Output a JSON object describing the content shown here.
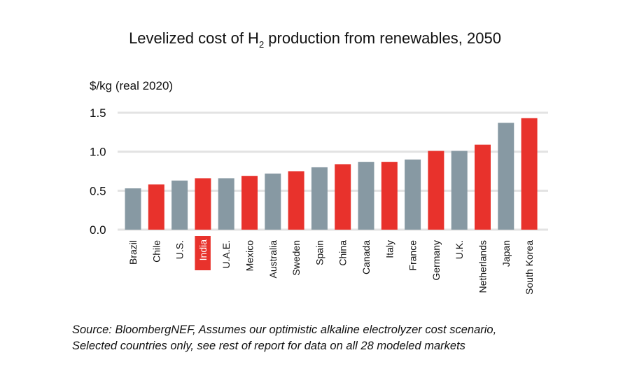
{
  "chart_data": {
    "type": "bar",
    "title_parts": {
      "before": "Levelized cost of H",
      "subscript": "2",
      "after": " production from renewables, 2050"
    },
    "title": "Levelized cost of H2 production from renewables, 2050",
    "ylabel": "$/kg (real 2020)",
    "xlabel": "",
    "ylim": [
      0,
      1.5
    ],
    "yticks": [
      0.0,
      0.5,
      1.0,
      1.5
    ],
    "ytick_labels": [
      "0.0",
      "0.5",
      "1.0",
      "1.5"
    ],
    "grid": true,
    "categories": [
      "Brazil",
      "Chile",
      "U.S.",
      "India",
      "U.A.E.",
      "Mexico",
      "Australia",
      "Sweden",
      "Spain",
      "China",
      "Canada",
      "Italy",
      "France",
      "Germany",
      "U.K.",
      "Netherlands",
      "Japan",
      "South Korea"
    ],
    "values": [
      0.53,
      0.58,
      0.63,
      0.66,
      0.66,
      0.69,
      0.72,
      0.75,
      0.8,
      0.84,
      0.87,
      0.87,
      0.9,
      1.01,
      1.01,
      1.09,
      1.37,
      1.43
    ],
    "bar_color_group": [
      "gray",
      "red",
      "gray",
      "red",
      "gray",
      "red",
      "gray",
      "red",
      "gray",
      "red",
      "gray",
      "red",
      "gray",
      "red",
      "gray",
      "red",
      "gray",
      "red"
    ],
    "highlighted_category": "India",
    "colors": {
      "gray": "#8799a3",
      "red": "#e8322c",
      "grid": "#e3e3e3",
      "highlight_label_bg": "#e8322c"
    },
    "legend": null
  },
  "footer": {
    "source_line1": "Source: BloombergNEF, Assumes our optimistic alkaline electrolyzer cost scenario,",
    "source_line2": "Selected countries only, see rest of report for data on all 28 modeled markets"
  }
}
